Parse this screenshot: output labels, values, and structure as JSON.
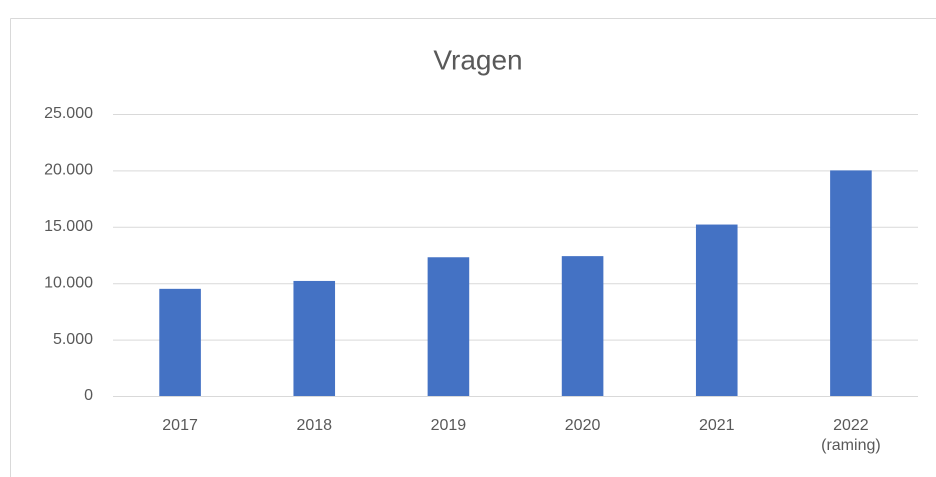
{
  "chart_data": {
    "type": "bar",
    "title": "Vragen",
    "categories": [
      "2017",
      "2018",
      "2019",
      "2020",
      "2021",
      "2022 (raming)"
    ],
    "values": [
      9500,
      10200,
      12300,
      12400,
      15200,
      20000
    ],
    "color": "#4472c4",
    "ylim": [
      0,
      25000
    ],
    "yticks": [
      0,
      {
        "value": 5000,
        "label": "5.000"
      },
      {
        "value": 10000,
        "label": "10.000"
      },
      {
        "value": 15000,
        "label": "15.000"
      },
      {
        "value": 20000,
        "label": "20.000"
      },
      {
        "value": 25000,
        "label": "25.000"
      }
    ],
    "grid": true
  }
}
